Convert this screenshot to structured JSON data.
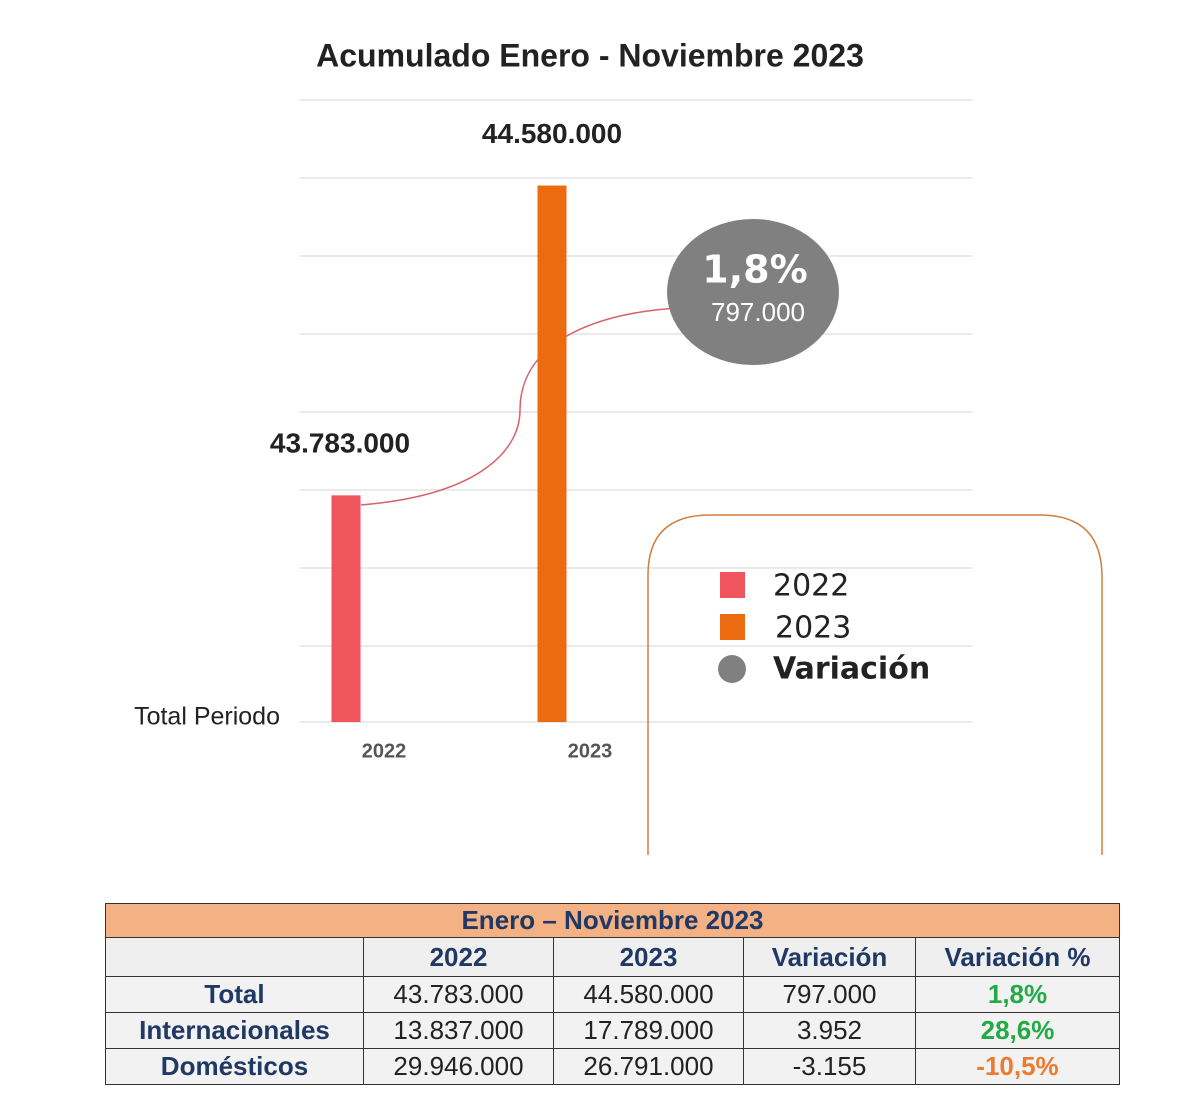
{
  "chart_data": {
    "type": "bar",
    "title": "Acumulado Enero - Noviembre 2023",
    "categories": [
      "Total Periodo"
    ],
    "series": [
      {
        "name": "2022",
        "color": "#f0545c",
        "values": [
          43783000
        ],
        "value_labels": [
          "43.783.000"
        ]
      },
      {
        "name": "2023",
        "color": "#ec6a10",
        "values": [
          44580000
        ],
        "value_labels": [
          "44.580.000"
        ]
      }
    ],
    "ylim": [
      43200000,
      44800000
    ],
    "annotation": {
      "name": "Variación",
      "color": "#808080",
      "value": 1.8,
      "value_label": "1,8%",
      "difference": 797000,
      "difference_label": "797.000"
    }
  },
  "table": {
    "title": "Enero – Noviembre 2023",
    "header": [
      "2022",
      "2023",
      "Variación",
      "Variación  %"
    ],
    "rows": [
      [
        "Total",
        "43.783.000",
        "44.580.000",
        "797.000",
        "1,8%"
      ],
      [
        "Internacionales",
        "13.837.000",
        "17.789.000",
        "3.952",
        "28,6%"
      ],
      [
        "Domésticos",
        "29.946.000",
        "26.791.000",
        "-3.155",
        "-10,5%"
      ]
    ]
  }
}
